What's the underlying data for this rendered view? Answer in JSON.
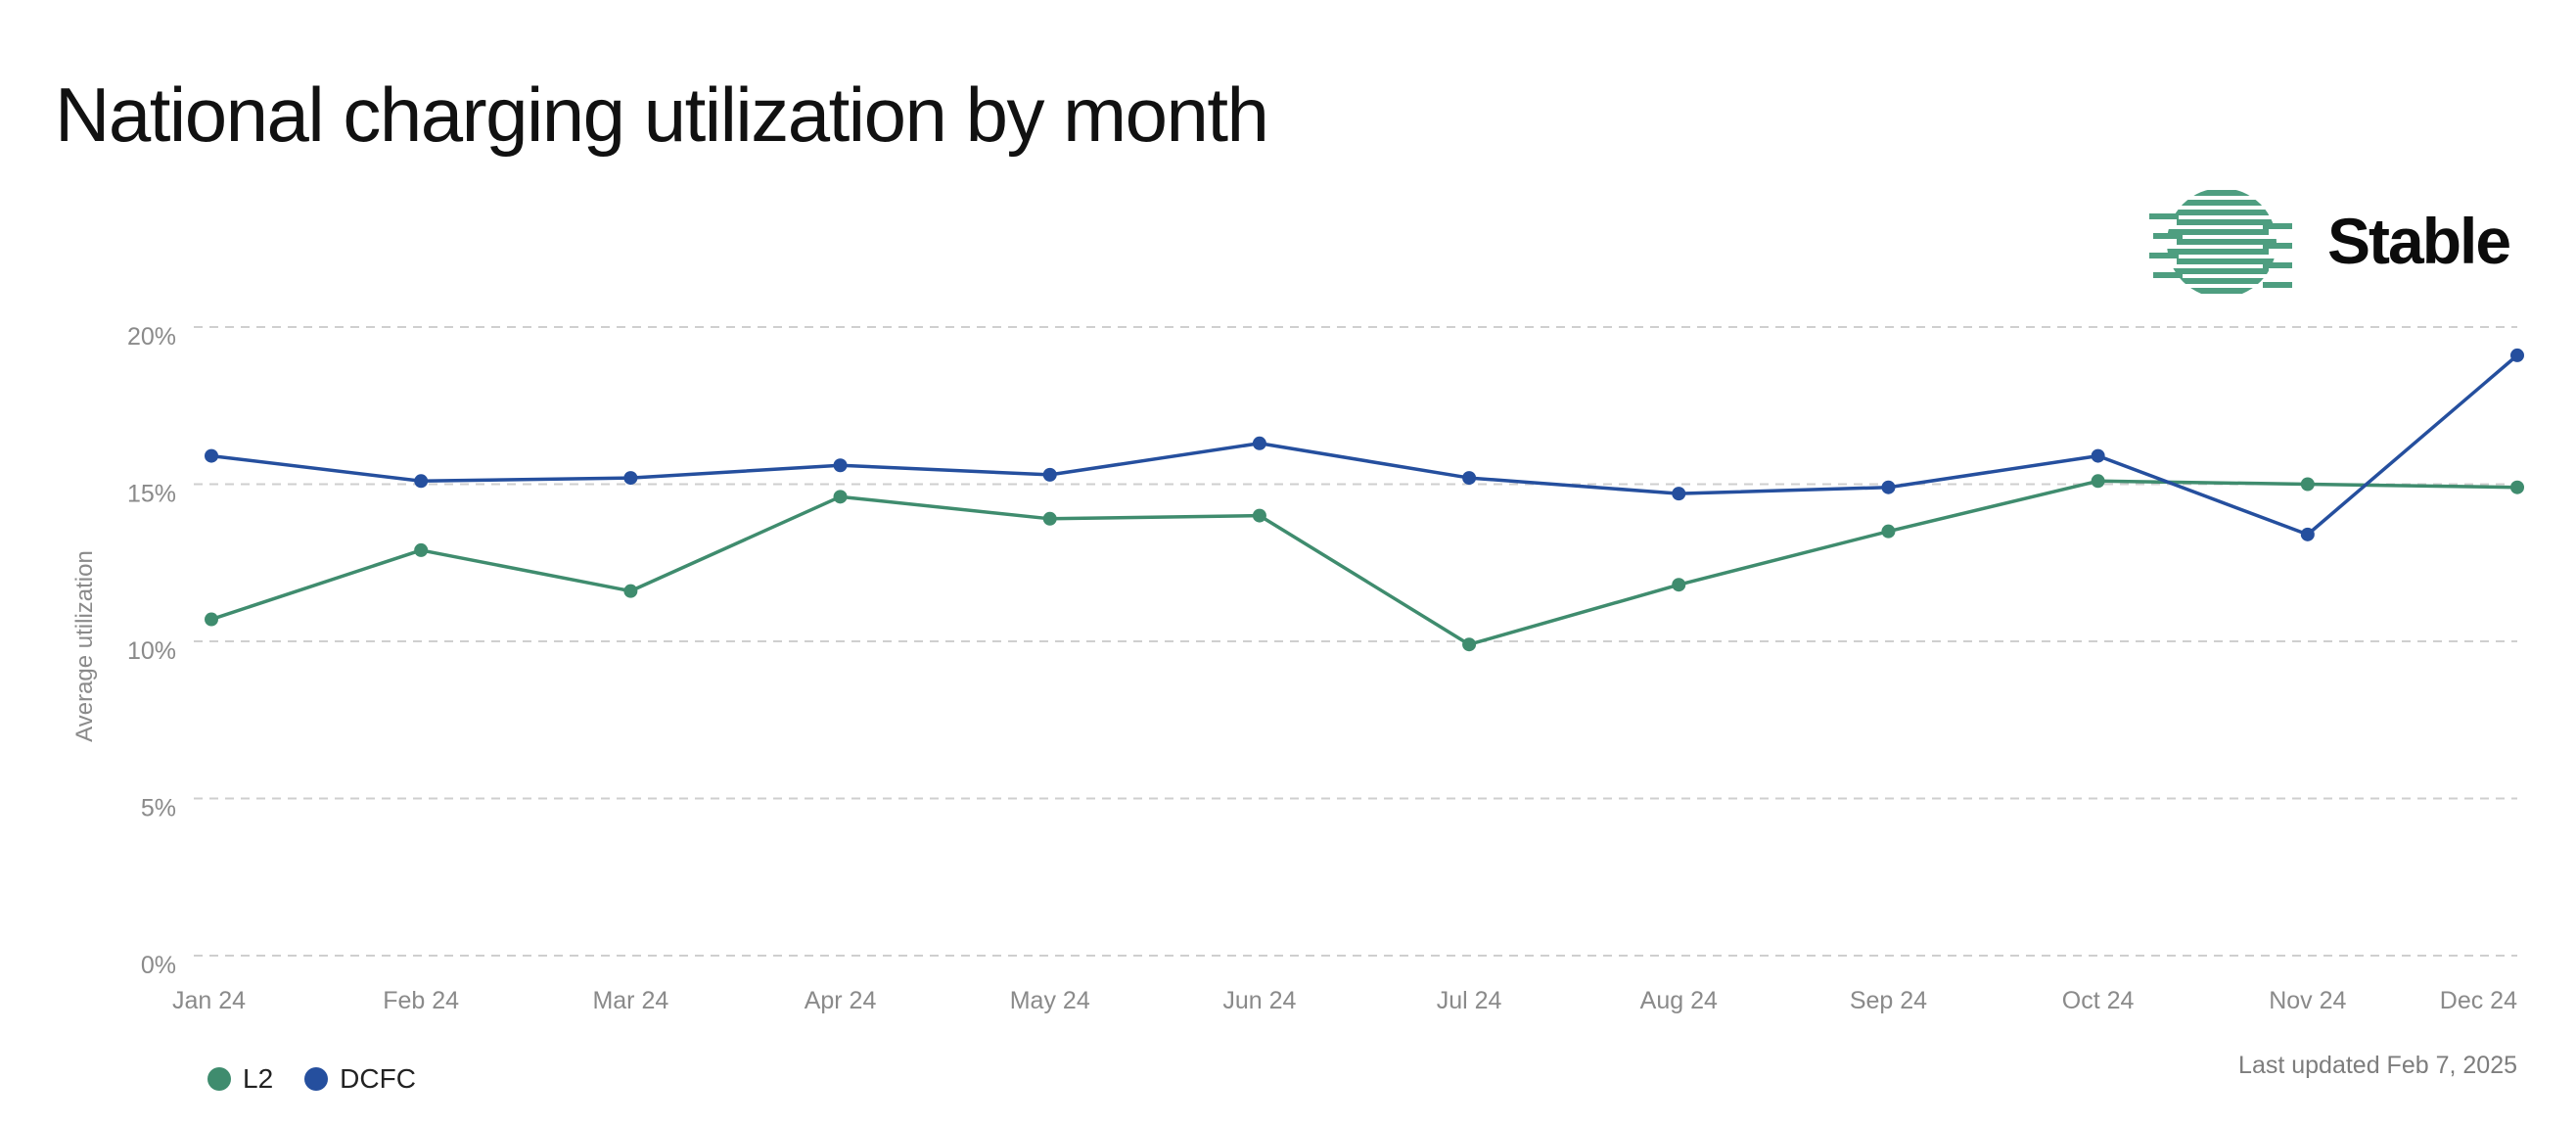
{
  "header": {
    "title": "National charging utilization by month",
    "brand_name": "Stable"
  },
  "footer": {
    "last_updated": "Last updated Feb 7, 2025"
  },
  "colors": {
    "L2": "#3f8c6e",
    "DCFC": "#254f9e",
    "logo": "#4e9e80",
    "grid": "#cfcfcf"
  },
  "chart_data": {
    "type": "line",
    "title": "National charging utilization by month",
    "xlabel": "",
    "ylabel": "Average utilization",
    "categories": [
      "Jan 24",
      "Feb 24",
      "Mar 24",
      "Apr 24",
      "May 24",
      "Jun 24",
      "Jul 24",
      "Aug 24",
      "Sep 24",
      "Oct 24",
      "Nov 24",
      "Dec 24"
    ],
    "ylim": [
      0,
      20
    ],
    "yticks": [
      0,
      5,
      10,
      15,
      20
    ],
    "ytick_labels": [
      "0%",
      "5%",
      "10%",
      "15%",
      "20%"
    ],
    "grid": true,
    "legend_position": "bottom-left",
    "series": [
      {
        "name": "L2",
        "values": [
          10.7,
          12.9,
          11.6,
          14.6,
          13.9,
          14.0,
          9.9,
          11.8,
          13.5,
          15.1,
          15.0,
          14.9
        ]
      },
      {
        "name": "DCFC",
        "values": [
          15.9,
          15.1,
          15.2,
          15.6,
          15.3,
          16.3,
          15.2,
          14.7,
          14.9,
          15.9,
          13.4,
          19.1
        ]
      }
    ]
  }
}
